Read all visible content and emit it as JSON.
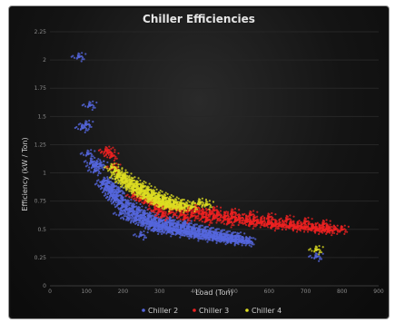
{
  "chart_data": {
    "type": "scatter",
    "title": "Chiller Efficiencies",
    "xlabel": "Load (Ton)",
    "ylabel": "Efficiency (kW / Ton)",
    "xlim": [
      0,
      900
    ],
    "ylim": [
      0,
      2.25
    ],
    "x_ticks": [
      "0",
      "100",
      "200",
      "300",
      "400",
      "500",
      "600",
      "700",
      "800",
      "900"
    ],
    "y_ticks": [
      "0",
      "0.25",
      "0.5",
      "0.75",
      "1",
      "1.25",
      "1.5",
      "1.75",
      "2",
      "2.25"
    ],
    "grid": true,
    "legend_position": "bottom",
    "series": [
      {
        "name": "Chiller 2",
        "color": "#5566dd",
        "points": [
          [
            80,
            2.03
          ],
          [
            90,
            1.4
          ],
          [
            100,
            1.43
          ],
          [
            110,
            1.6
          ],
          [
            105,
            1.17
          ],
          [
            115,
            1.1
          ],
          [
            120,
            1.06
          ],
          [
            130,
            1.08
          ],
          [
            125,
            1.02
          ],
          [
            140,
            1.07
          ],
          [
            150,
            0.93
          ],
          [
            155,
            0.88
          ],
          [
            160,
            0.86
          ],
          [
            165,
            0.83
          ],
          [
            170,
            0.8
          ],
          [
            175,
            0.78
          ],
          [
            180,
            0.76
          ],
          [
            190,
            0.73
          ],
          [
            200,
            0.7
          ],
          [
            210,
            0.68
          ],
          [
            220,
            0.66
          ],
          [
            230,
            0.64
          ],
          [
            240,
            0.62
          ],
          [
            250,
            0.6
          ],
          [
            260,
            0.59
          ],
          [
            270,
            0.57
          ],
          [
            280,
            0.56
          ],
          [
            290,
            0.55
          ],
          [
            300,
            0.54
          ],
          [
            310,
            0.53
          ],
          [
            320,
            0.52
          ],
          [
            330,
            0.51
          ],
          [
            340,
            0.5
          ],
          [
            350,
            0.5
          ],
          [
            360,
            0.49
          ],
          [
            370,
            0.48
          ],
          [
            380,
            0.48
          ],
          [
            390,
            0.47
          ],
          [
            400,
            0.46
          ],
          [
            410,
            0.46
          ],
          [
            420,
            0.45
          ],
          [
            430,
            0.45
          ],
          [
            440,
            0.44
          ],
          [
            450,
            0.44
          ],
          [
            460,
            0.43
          ],
          [
            470,
            0.43
          ],
          [
            480,
            0.42
          ],
          [
            490,
            0.42
          ],
          [
            500,
            0.41
          ],
          [
            510,
            0.41
          ],
          [
            520,
            0.4
          ],
          [
            530,
            0.4
          ],
          [
            540,
            0.4
          ],
          [
            545,
            0.39
          ],
          [
            170,
            0.85
          ],
          [
            185,
            0.8
          ],
          [
            200,
            0.76
          ],
          [
            215,
            0.73
          ],
          [
            230,
            0.7
          ],
          [
            245,
            0.67
          ],
          [
            260,
            0.64
          ],
          [
            275,
            0.62
          ],
          [
            290,
            0.6
          ],
          [
            305,
            0.58
          ],
          [
            320,
            0.56
          ],
          [
            335,
            0.55
          ],
          [
            350,
            0.54
          ],
          [
            365,
            0.53
          ],
          [
            380,
            0.52
          ],
          [
            395,
            0.51
          ],
          [
            410,
            0.5
          ],
          [
            425,
            0.49
          ],
          [
            440,
            0.48
          ],
          [
            455,
            0.47
          ],
          [
            470,
            0.46
          ],
          [
            485,
            0.45
          ],
          [
            500,
            0.44
          ],
          [
            515,
            0.44
          ],
          [
            195,
            0.64
          ],
          [
            215,
            0.6
          ],
          [
            235,
            0.58
          ],
          [
            255,
            0.55
          ],
          [
            275,
            0.53
          ],
          [
            300,
            0.5
          ],
          [
            325,
            0.48
          ],
          [
            350,
            0.47
          ],
          [
            375,
            0.46
          ],
          [
            400,
            0.44
          ],
          [
            425,
            0.43
          ],
          [
            450,
            0.42
          ],
          [
            475,
            0.41
          ],
          [
            500,
            0.4
          ],
          [
            250,
            0.45
          ],
          [
            290,
            0.5
          ],
          [
            330,
            0.58
          ],
          [
            370,
            0.55
          ],
          [
            145,
            0.9
          ],
          [
            160,
            0.92
          ],
          [
            175,
            0.88
          ],
          [
            190,
            0.84
          ],
          [
            730,
            0.26
          ]
        ]
      },
      {
        "name": "Chiller 3",
        "color": "#ee2222",
        "points": [
          [
            155,
            1.2
          ],
          [
            160,
            1.18
          ],
          [
            170,
            1.15
          ],
          [
            175,
            1.05
          ],
          [
            280,
            0.74
          ],
          [
            300,
            0.72
          ],
          [
            320,
            0.7
          ],
          [
            340,
            0.69
          ],
          [
            360,
            0.68
          ],
          [
            380,
            0.67
          ],
          [
            400,
            0.66
          ],
          [
            420,
            0.65
          ],
          [
            440,
            0.64
          ],
          [
            460,
            0.63
          ],
          [
            480,
            0.62
          ],
          [
            500,
            0.61
          ],
          [
            520,
            0.6
          ],
          [
            540,
            0.59
          ],
          [
            560,
            0.58
          ],
          [
            580,
            0.57
          ],
          [
            600,
            0.56
          ],
          [
            620,
            0.55
          ],
          [
            640,
            0.54
          ],
          [
            660,
            0.54
          ],
          [
            680,
            0.53
          ],
          [
            700,
            0.52
          ],
          [
            720,
            0.52
          ],
          [
            740,
            0.51
          ],
          [
            760,
            0.51
          ],
          [
            780,
            0.5
          ],
          [
            800,
            0.5
          ],
          [
            300,
            0.66
          ],
          [
            330,
            0.65
          ],
          [
            360,
            0.63
          ],
          [
            390,
            0.62
          ],
          [
            420,
            0.61
          ],
          [
            450,
            0.6
          ],
          [
            480,
            0.59
          ],
          [
            510,
            0.58
          ],
          [
            540,
            0.57
          ],
          [
            570,
            0.56
          ],
          [
            600,
            0.55
          ],
          [
            630,
            0.54
          ],
          [
            660,
            0.53
          ],
          [
            690,
            0.52
          ],
          [
            720,
            0.51
          ],
          [
            750,
            0.5
          ],
          [
            350,
            0.7
          ],
          [
            400,
            0.69
          ],
          [
            450,
            0.67
          ],
          [
            500,
            0.65
          ],
          [
            550,
            0.63
          ],
          [
            600,
            0.61
          ],
          [
            650,
            0.59
          ],
          [
            700,
            0.57
          ],
          [
            750,
            0.55
          ],
          [
            310,
            0.62
          ],
          [
            370,
            0.6
          ],
          [
            430,
            0.58
          ],
          [
            490,
            0.56
          ],
          [
            550,
            0.55
          ],
          [
            610,
            0.53
          ],
          [
            670,
            0.52
          ],
          [
            730,
            0.5
          ],
          [
            765,
            0.49
          ],
          [
            230,
            0.8
          ],
          [
            250,
            0.77
          ],
          [
            265,
            0.75
          ],
          [
            290,
            0.68
          ]
        ]
      },
      {
        "name": "Chiller 4",
        "color": "#dddd22",
        "points": [
          [
            170,
            1.05
          ],
          [
            180,
            1.02
          ],
          [
            190,
            0.98
          ],
          [
            200,
            0.95
          ],
          [
            210,
            0.93
          ],
          [
            220,
            0.9
          ],
          [
            230,
            0.88
          ],
          [
            240,
            0.86
          ],
          [
            250,
            0.84
          ],
          [
            260,
            0.82
          ],
          [
            270,
            0.8
          ],
          [
            280,
            0.78
          ],
          [
            290,
            0.77
          ],
          [
            300,
            0.75
          ],
          [
            310,
            0.74
          ],
          [
            320,
            0.73
          ],
          [
            330,
            0.72
          ],
          [
            340,
            0.71
          ],
          [
            350,
            0.7
          ],
          [
            360,
            0.69
          ],
          [
            185,
            0.96
          ],
          [
            200,
            0.92
          ],
          [
            215,
            0.88
          ],
          [
            230,
            0.85
          ],
          [
            245,
            0.82
          ],
          [
            260,
            0.79
          ],
          [
            275,
            0.77
          ],
          [
            290,
            0.74
          ],
          [
            305,
            0.72
          ],
          [
            320,
            0.7
          ],
          [
            190,
            1.0
          ],
          [
            205,
            0.97
          ],
          [
            225,
            0.93
          ],
          [
            240,
            0.9
          ],
          [
            255,
            0.88
          ],
          [
            270,
            0.85
          ],
          [
            285,
            0.82
          ],
          [
            300,
            0.8
          ],
          [
            315,
            0.78
          ],
          [
            330,
            0.76
          ],
          [
            345,
            0.74
          ],
          [
            360,
            0.73
          ],
          [
            375,
            0.71
          ],
          [
            390,
            0.7
          ],
          [
            410,
            0.74
          ],
          [
            430,
            0.72
          ],
          [
            730,
            0.32
          ]
        ]
      }
    ]
  }
}
